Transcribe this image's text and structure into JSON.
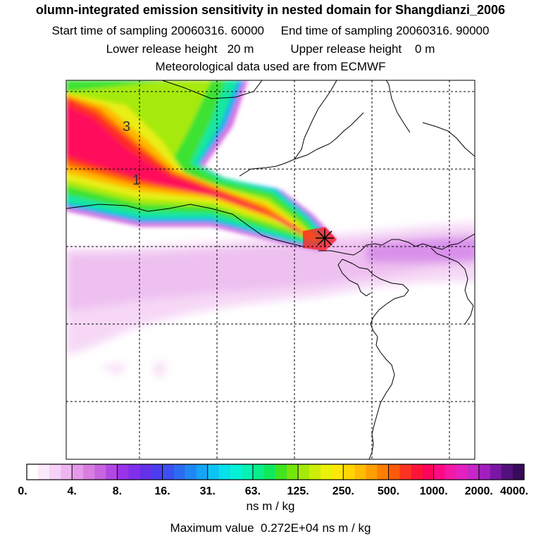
{
  "header": {
    "title": "olumn-integrated emission sensitivity in nested domain for Shangdianzi_2006",
    "sampling_line": "Start time of sampling 20060316. 60000     End time of sampling 20060316. 90000",
    "release_line": "Lower release height   20 m           Upper release height    0 m",
    "met_line": "Meteorological data used are from ECMWF"
  },
  "map": {
    "contour_labels": [
      "3",
      "1"
    ],
    "receptor_marker": "star",
    "grid": "dashed"
  },
  "legend": {
    "tick_labels": [
      "0.",
      "4.",
      "8.",
      "16.",
      "31.",
      "63.",
      "125.",
      "250.",
      "500.",
      "1000.",
      "2000.",
      "4000."
    ],
    "colors": [
      "#ffffff",
      "#fbe8fb",
      "#f6d2f6",
      "#eeb4f0",
      "#e49ae8",
      "#d77ee0",
      "#c864dd",
      "#b248e4",
      "#9a34e8",
      "#8030ea",
      "#6430ea",
      "#4c3cee",
      "#3a50f0",
      "#2c6cf2",
      "#2088f4",
      "#16a4f6",
      "#0cc4f4",
      "#08e0ec",
      "#06f0d8",
      "#06f2b4",
      "#08ee8a",
      "#10e85c",
      "#40e420",
      "#74e60c",
      "#a4ea08",
      "#ccee08",
      "#ecf00a",
      "#fce804",
      "#ffd600",
      "#ffbc00",
      "#ff9e00",
      "#ff7e00",
      "#ff5a0a",
      "#ff3420",
      "#ff1438",
      "#ff0458",
      "#ff0a84",
      "#f418a6",
      "#e222c0",
      "#c626c8",
      "#a21ebe",
      "#7a16a4",
      "#52107e",
      "#380a5a"
    ],
    "units": "ns m / kg",
    "max_value_line": "Maximum value  0.272E+04 ns m / kg"
  }
}
